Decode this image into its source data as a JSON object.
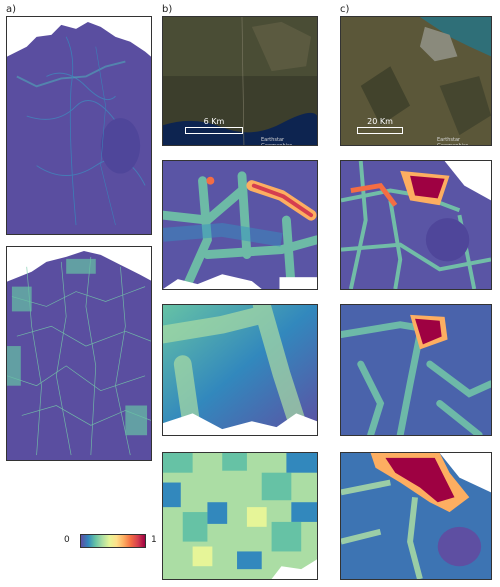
{
  "panel_labels": {
    "a": "a)",
    "b": "b)",
    "c": "c)"
  },
  "satellite_b": {
    "scale_label": "6 Km",
    "credit": "Earthstar Geographics"
  },
  "satellite_c": {
    "scale_label": "20 Km",
    "credit": "Earthstar Geographics"
  },
  "colorbar": {
    "min_label": "0",
    "max_label": "1",
    "colors": [
      "#5e4fa2",
      "#3288bd",
      "#66c2a5",
      "#abdda4",
      "#e6f598",
      "#fee08b",
      "#fdae61",
      "#f46d43",
      "#d53e4f",
      "#9e0142"
    ]
  }
}
